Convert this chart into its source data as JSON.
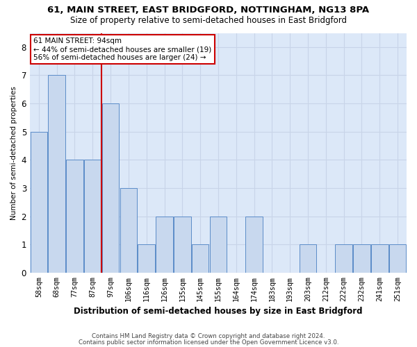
{
  "title1": "61, MAIN STREET, EAST BRIDGFORD, NOTTINGHAM, NG13 8PA",
  "title2": "Size of property relative to semi-detached houses in East Bridgford",
  "xlabel": "Distribution of semi-detached houses by size in East Bridgford",
  "ylabel": "Number of semi-detached properties",
  "footnote1": "Contains HM Land Registry data © Crown copyright and database right 2024.",
  "footnote2": "Contains public sector information licensed under the Open Government Licence v3.0.",
  "categories": [
    "58sqm",
    "68sqm",
    "77sqm",
    "87sqm",
    "97sqm",
    "106sqm",
    "116sqm",
    "126sqm",
    "135sqm",
    "145sqm",
    "155sqm",
    "164sqm",
    "174sqm",
    "183sqm",
    "193sqm",
    "203sqm",
    "212sqm",
    "222sqm",
    "232sqm",
    "241sqm",
    "251sqm"
  ],
  "values": [
    5,
    7,
    4,
    4,
    6,
    3,
    1,
    2,
    2,
    1,
    2,
    0,
    2,
    0,
    0,
    1,
    0,
    1,
    1,
    1,
    1
  ],
  "bar_color": "#c8d8ee",
  "bar_edge_color": "#5b8cc8",
  "red_line_x": 3.5,
  "red_line_color": "#cc0000",
  "annotation_line1": "61 MAIN STREET: 94sqm",
  "annotation_line2": "← 44% of semi-detached houses are smaller (19)",
  "annotation_line3": "56% of semi-detached houses are larger (24) →",
  "annotation_box_facecolor": "#ffffff",
  "annotation_box_edgecolor": "#cc0000",
  "ylim": [
    0,
    8.5
  ],
  "yticks": [
    0,
    1,
    2,
    3,
    4,
    5,
    6,
    7,
    8
  ],
  "grid_color": "#c8d4e8",
  "plot_bg_color": "#dce8f8",
  "fig_bg_color": "#ffffff"
}
